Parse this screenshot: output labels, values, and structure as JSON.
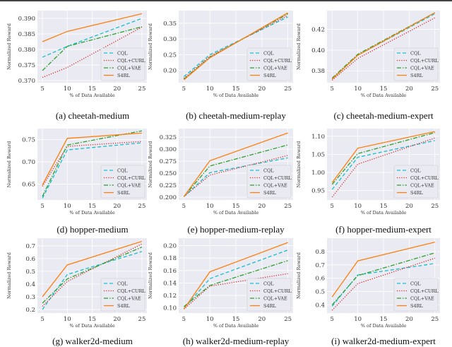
{
  "chart_data": [
    {
      "type": "line",
      "caption": "(a) cheetah-medium",
      "xlabel": "% of Data Available",
      "ylabel": "Normalized Reward",
      "x": [
        5,
        10,
        25
      ],
      "xticks": [
        "5",
        "10",
        "15",
        "20",
        "25"
      ],
      "ylim": [
        0.3693,
        0.3925
      ],
      "yticks": [
        "0.370",
        "0.375",
        "0.380",
        "0.385",
        "0.390"
      ],
      "legend": "bottom-right",
      "grid": true,
      "series": [
        {
          "name": "CQL",
          "values": [
            0.3775,
            0.381,
            0.39
          ]
        },
        {
          "name": "CQL+CURL",
          "values": [
            0.371,
            0.3742,
            0.3872
          ]
        },
        {
          "name": "CQL+VAE",
          "values": [
            0.3732,
            0.381,
            0.3873
          ]
        },
        {
          "name": "S4RL",
          "values": [
            0.3825,
            0.3858,
            0.3915
          ]
        }
      ]
    },
    {
      "type": "line",
      "caption": "(b) cheetah-medium-replay",
      "xlabel": "% of Data Available",
      "ylabel": "Normalized Reward",
      "x": [
        5,
        10,
        25
      ],
      "xticks": [
        "5",
        "10",
        "15",
        "20",
        "25"
      ],
      "ylim": [
        0.161,
        0.39
      ],
      "yticks": [
        "0.20",
        "0.25",
        "0.30",
        "0.35"
      ],
      "legend": "bottom-right",
      "grid": true,
      "series": [
        {
          "name": "CQL",
          "values": [
            0.18,
            0.25,
            0.37
          ]
        },
        {
          "name": "CQL+CURL",
          "values": [
            0.175,
            0.245,
            0.375
          ]
        },
        {
          "name": "CQL+VAE",
          "values": [
            0.172,
            0.242,
            0.38
          ]
        },
        {
          "name": "S4RL",
          "values": [
            0.17,
            0.24,
            0.383
          ]
        }
      ]
    },
    {
      "type": "line",
      "caption": "(c) cheetah-medium-expert",
      "xlabel": "% of Data Available",
      "ylabel": "Normalized Reward",
      "x": [
        5,
        10,
        25
      ],
      "xticks": [
        "5",
        "10",
        "15",
        "20",
        "25"
      ],
      "ylim": [
        0.3686,
        0.438
      ],
      "yticks": [
        "0.38",
        "0.40",
        "0.42"
      ],
      "legend": "bottom-right",
      "grid": true,
      "series": [
        {
          "name": "CQL",
          "values": [
            0.372,
            0.395,
            0.435
          ]
        },
        {
          "name": "CQL+CURL",
          "values": [
            0.371,
            0.392,
            0.431
          ]
        },
        {
          "name": "CQL+VAE",
          "values": [
            0.373,
            0.396,
            0.436
          ]
        },
        {
          "name": "S4RL",
          "values": [
            0.372,
            0.395,
            0.436
          ]
        }
      ]
    },
    {
      "type": "line",
      "caption": "(d) hopper-medium",
      "xlabel": "% of Data Available",
      "ylabel": "Normalized Reward",
      "x": [
        5,
        10,
        25
      ],
      "xticks": [
        "5",
        "10",
        "15",
        "20",
        "25"
      ],
      "ylim": [
        0.614,
        0.775
      ],
      "yticks": [
        "0.65",
        "0.70",
        "0.75"
      ],
      "legend": "bottom-right",
      "grid": true,
      "series": [
        {
          "name": "CQL",
          "values": [
            0.618,
            0.727,
            0.743
          ]
        },
        {
          "name": "CQL+CURL",
          "values": [
            0.645,
            0.735,
            0.746
          ]
        },
        {
          "name": "CQL+VAE",
          "values": [
            0.622,
            0.738,
            0.77
          ]
        },
        {
          "name": "S4RL",
          "values": [
            0.648,
            0.753,
            0.765
          ]
        }
      ]
    },
    {
      "type": "line",
      "caption": "(e) hopper-medium-replay",
      "xlabel": "% of Data Available",
      "ylabel": "Normalized Reward",
      "x": [
        5,
        10,
        25
      ],
      "xticks": [
        "5",
        "10",
        "15",
        "20",
        "25"
      ],
      "ylim": [
        0.194,
        0.343
      ],
      "yticks": [
        "0.200",
        "0.225",
        "0.250",
        "0.275",
        "0.300",
        "0.325"
      ],
      "legend": "bottom-right",
      "grid": true,
      "series": [
        {
          "name": "CQL",
          "values": [
            0.201,
            0.251,
            0.282
          ]
        },
        {
          "name": "CQL+CURL",
          "values": [
            0.201,
            0.246,
            0.287
          ]
        },
        {
          "name": "CQL+VAE",
          "values": [
            0.201,
            0.265,
            0.309
          ]
        },
        {
          "name": "S4RL",
          "values": [
            0.201,
            0.276,
            0.334
          ]
        }
      ]
    },
    {
      "type": "line",
      "caption": "(f) hopper-medium-expert",
      "xlabel": "% of Data Available",
      "ylabel": "Normalized Reward",
      "x": [
        5,
        10,
        25
      ],
      "xticks": [
        "5",
        "10",
        "15",
        "20",
        "25"
      ],
      "ylim": [
        0.924,
        1.121
      ],
      "yticks": [
        "0.95",
        "1.00",
        "1.05",
        "1.10"
      ],
      "legend": "bottom-right",
      "grid": true,
      "series": [
        {
          "name": "CQL",
          "values": [
            0.953,
            1.042,
            1.088
          ]
        },
        {
          "name": "CQL+CURL",
          "values": [
            0.932,
            1.023,
            1.095
          ]
        },
        {
          "name": "CQL+VAE",
          "values": [
            0.967,
            1.052,
            1.11
          ]
        },
        {
          "name": "S4RL",
          "values": [
            0.972,
            1.067,
            1.113
          ]
        }
      ]
    },
    {
      "type": "line",
      "caption": "(g) walker2d-medium",
      "xlabel": "% of Data Available",
      "ylabel": "Normalized Reward",
      "x": [
        5,
        10,
        25
      ],
      "xticks": [
        "5",
        "10",
        "15",
        "20",
        "25"
      ],
      "ylim": [
        0.172,
        0.76
      ],
      "yticks": [
        "0.2",
        "0.3",
        "0.4",
        "0.5",
        "0.6",
        "0.7"
      ],
      "legend": "bottom-right",
      "grid": true,
      "series": [
        {
          "name": "CQL",
          "values": [
            0.2,
            0.475,
            0.655
          ]
        },
        {
          "name": "CQL+CURL",
          "values": [
            0.225,
            0.42,
            0.715
          ]
        },
        {
          "name": "CQL+VAE",
          "values": [
            0.25,
            0.44,
            0.69
          ]
        },
        {
          "name": "S4RL",
          "values": [
            0.3,
            0.55,
            0.735
          ]
        }
      ]
    },
    {
      "type": "line",
      "caption": "(h) walker2d-medium-replay",
      "xlabel": "% of Data Available",
      "ylabel": "Normalized Reward",
      "x": [
        5,
        10,
        25
      ],
      "xticks": [
        "5",
        "10",
        "15",
        "20",
        "25"
      ],
      "ylim": [
        0.0917,
        0.212
      ],
      "yticks": [
        "0.10",
        "0.12",
        "0.14",
        "0.16",
        "0.18",
        "0.20"
      ],
      "legend": "bottom-right",
      "grid": true,
      "series": [
        {
          "name": "CQL",
          "values": [
            0.099,
            0.147,
            0.193
          ]
        },
        {
          "name": "CQL+CURL",
          "values": [
            0.098,
            0.135,
            0.155
          ]
        },
        {
          "name": "CQL+VAE",
          "values": [
            0.102,
            0.136,
            0.176
          ]
        },
        {
          "name": "S4RL",
          "values": [
            0.098,
            0.158,
            0.205
          ]
        }
      ]
    },
    {
      "type": "line",
      "caption": "(i) walker2d-medium-expert",
      "xlabel": "% of Data Available",
      "ylabel": "Normalized Reward",
      "x": [
        5,
        10,
        25
      ],
      "xticks": [
        "5",
        "10",
        "15",
        "20",
        "25"
      ],
      "ylim": [
        0.339,
        0.9
      ],
      "yticks": [
        "0.4",
        "0.5",
        "0.6",
        "0.7",
        "0.8"
      ],
      "legend": "bottom-right",
      "grid": true,
      "series": [
        {
          "name": "CQL",
          "values": [
            0.39,
            0.625,
            0.71
          ]
        },
        {
          "name": "CQL+CURL",
          "values": [
            0.36,
            0.56,
            0.75
          ]
        },
        {
          "name": "CQL+VAE",
          "values": [
            0.4,
            0.62,
            0.79
          ]
        },
        {
          "name": "S4RL",
          "values": [
            0.46,
            0.73,
            0.87
          ]
        }
      ]
    }
  ],
  "series_styles": [
    {
      "color": "#17becf",
      "dash": "5,3"
    },
    {
      "color": "#d62728",
      "dash": "1.2,2"
    },
    {
      "color": "#2ca02c",
      "dash": "6,2,1.5,2"
    },
    {
      "color": "#ff7f0e",
      "dash": ""
    }
  ],
  "xlim": [
    4,
    26
  ]
}
